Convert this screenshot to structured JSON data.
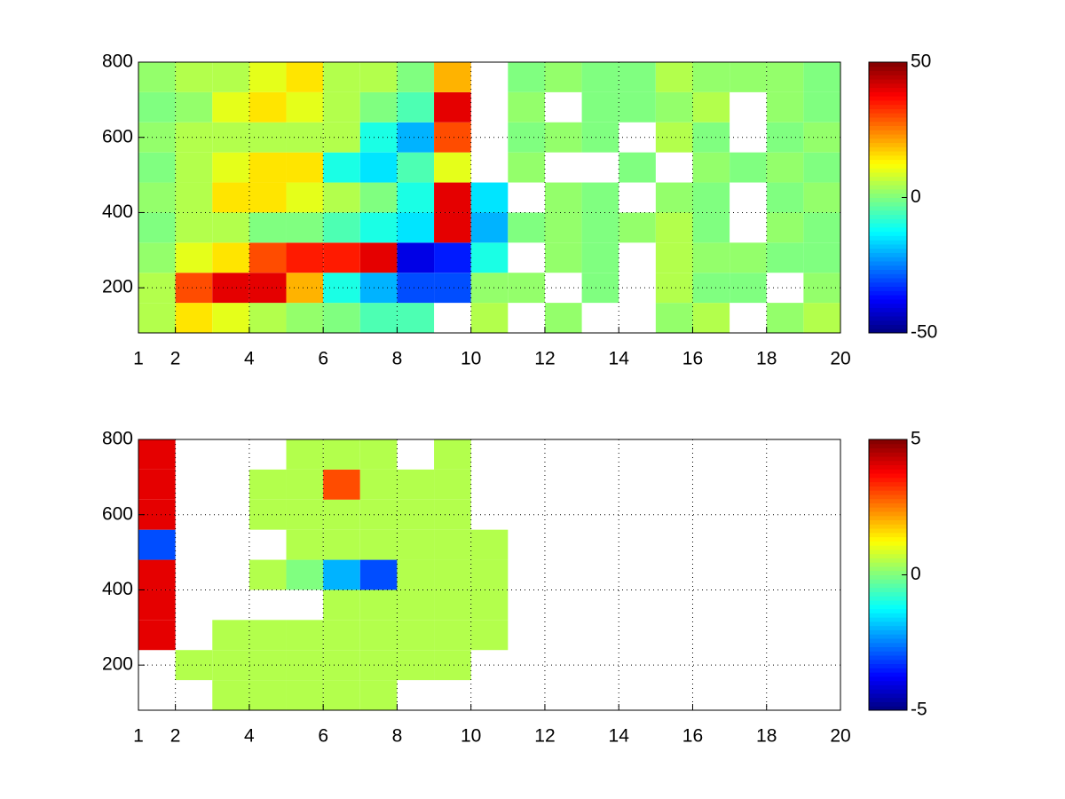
{
  "chart_data": [
    {
      "type": "heatmap",
      "colormap": "jet",
      "grid": true,
      "x_edges": [
        1,
        2,
        3,
        4,
        5,
        6,
        7,
        8,
        9,
        10,
        11,
        12,
        13,
        14,
        15,
        16,
        17,
        18,
        19,
        20
      ],
      "y_edges": [
        80,
        160,
        240,
        320,
        400,
        480,
        560,
        640,
        720,
        800
      ],
      "z": [
        [
          5,
          15,
          10,
          5,
          2,
          0,
          -5,
          -5,
          null,
          5,
          null,
          2,
          null,
          null,
          2,
          5,
          null,
          2,
          5
        ],
        [
          5,
          30,
          40,
          40,
          20,
          -10,
          -20,
          -30,
          -30,
          2,
          2,
          null,
          0,
          null,
          5,
          0,
          0,
          null,
          2
        ],
        [
          2,
          10,
          15,
          30,
          35,
          35,
          40,
          -40,
          -35,
          -10,
          null,
          2,
          0,
          null,
          5,
          2,
          2,
          0,
          0
        ],
        [
          0,
          5,
          5,
          0,
          0,
          -5,
          -10,
          -15,
          40,
          -20,
          0,
          2,
          0,
          2,
          5,
          0,
          null,
          2,
          0
        ],
        [
          2,
          5,
          15,
          15,
          10,
          5,
          0,
          -10,
          40,
          -15,
          null,
          2,
          0,
          null,
          2,
          0,
          null,
          0,
          2
        ],
        [
          0,
          5,
          10,
          15,
          15,
          -10,
          -15,
          -5,
          10,
          null,
          2,
          null,
          null,
          0,
          null,
          2,
          0,
          2,
          0
        ],
        [
          2,
          5,
          5,
          5,
          5,
          5,
          -10,
          -20,
          30,
          null,
          0,
          2,
          0,
          null,
          5,
          0,
          null,
          0,
          2
        ],
        [
          0,
          2,
          10,
          15,
          10,
          5,
          0,
          -5,
          40,
          null,
          2,
          null,
          0,
          0,
          2,
          5,
          null,
          2,
          0
        ],
        [
          2,
          5,
          5,
          10,
          15,
          5,
          5,
          0,
          20,
          null,
          0,
          2,
          0,
          0,
          5,
          2,
          2,
          2,
          0
        ]
      ],
      "xlim": [
        1,
        20
      ],
      "xticks": [
        1,
        2,
        4,
        6,
        8,
        10,
        12,
        14,
        16,
        18,
        20
      ],
      "ylim": [
        80,
        800
      ],
      "yticks": [
        200,
        400,
        600,
        800
      ],
      "clim": [
        -50,
        50
      ],
      "colorbar_ticks": [
        -50,
        0,
        50
      ]
    },
    {
      "type": "heatmap",
      "colormap": "jet",
      "grid": true,
      "x_edges": [
        1,
        2,
        3,
        4,
        5,
        6,
        7,
        8,
        9,
        10,
        11,
        12,
        13,
        14,
        15,
        16,
        17,
        18,
        19,
        20
      ],
      "y_edges": [
        80,
        160,
        240,
        320,
        400,
        480,
        560,
        640,
        720,
        800
      ],
      "z": [
        [
          null,
          null,
          0.5,
          0.5,
          0.5,
          0.5,
          0.5,
          null,
          null,
          null,
          null,
          null,
          null,
          null,
          null,
          null,
          null,
          null,
          null
        ],
        [
          null,
          0.5,
          0.5,
          0.5,
          0.5,
          0.5,
          0.5,
          0.5,
          0.5,
          null,
          null,
          null,
          null,
          null,
          null,
          null,
          null,
          null,
          null
        ],
        [
          4,
          null,
          0.5,
          0.5,
          0.5,
          0.5,
          0.5,
          0.5,
          0.5,
          0.5,
          null,
          null,
          null,
          null,
          null,
          null,
          null,
          null,
          null
        ],
        [
          4,
          null,
          null,
          null,
          null,
          0.5,
          0.5,
          0.5,
          0.5,
          0.5,
          null,
          null,
          null,
          null,
          null,
          null,
          null,
          null,
          null
        ],
        [
          4,
          null,
          null,
          0.5,
          0,
          -2,
          -3,
          0.5,
          0.5,
          0.5,
          null,
          null,
          null,
          null,
          null,
          null,
          null,
          null,
          null
        ],
        [
          -3,
          null,
          null,
          null,
          0.5,
          0.5,
          0.5,
          0.5,
          0.5,
          0.5,
          null,
          null,
          null,
          null,
          null,
          null,
          null,
          null,
          null
        ],
        [
          4,
          null,
          null,
          0.5,
          0.5,
          0.5,
          0.5,
          0.5,
          0.5,
          null,
          null,
          null,
          null,
          null,
          null,
          null,
          null,
          null,
          null
        ],
        [
          4,
          null,
          null,
          0.5,
          0.5,
          3,
          0.5,
          0.5,
          0.5,
          null,
          null,
          null,
          null,
          null,
          null,
          null,
          null,
          null,
          null
        ],
        [
          4,
          null,
          null,
          null,
          0.5,
          0.5,
          0.5,
          null,
          0.5,
          null,
          null,
          null,
          null,
          null,
          null,
          null,
          null,
          null,
          null
        ]
      ],
      "xlim": [
        1,
        20
      ],
      "xticks": [
        1,
        2,
        4,
        6,
        8,
        10,
        12,
        14,
        16,
        18,
        20
      ],
      "ylim": [
        80,
        800
      ],
      "yticks": [
        200,
        400,
        600,
        800
      ],
      "clim": [
        -5,
        5
      ],
      "colorbar_ticks": [
        -5,
        0,
        5
      ]
    }
  ]
}
